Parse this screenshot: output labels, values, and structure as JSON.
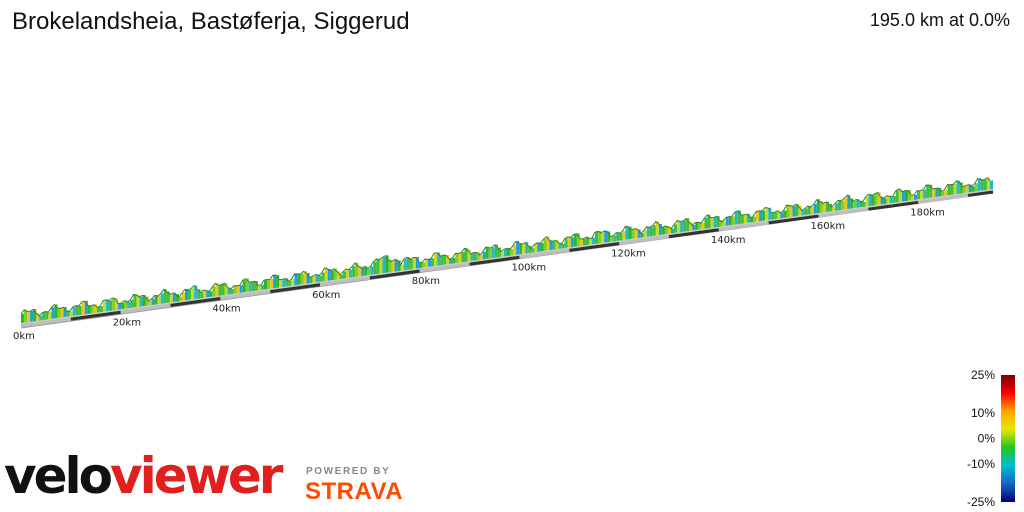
{
  "header": {
    "title": "Brokelandsheia, Bastøferja, Siggerud",
    "summary": "195.0 km at 0.0%"
  },
  "chart_data": {
    "type": "area",
    "title": "Brokelandsheia, Bastøferja, Siggerud",
    "total_distance_km": 195.0,
    "tick_labels": [
      "0km",
      "20km",
      "40km",
      "60km",
      "80km",
      "100km",
      "120km",
      "140km",
      "160km",
      "180km"
    ],
    "tick_values": [
      0,
      20,
      40,
      60,
      80,
      100,
      120,
      140,
      160,
      180
    ],
    "gradient_scale": {
      "labels": [
        "25%",
        "10%",
        "0%",
        "-10%",
        "-25%"
      ],
      "values": [
        25,
        10,
        0,
        -10,
        -25
      ],
      "colors": [
        "#7a0000",
        "#ff0000",
        "#ffa500",
        "#e6e600",
        "#22c522",
        "#00bcd4",
        "#1565c0",
        "#00007a"
      ]
    }
  },
  "branding": {
    "logo_velo": "velo",
    "logo_viewer": "viewer",
    "powered_by": "POWERED BY",
    "strava": "STRAVA"
  }
}
